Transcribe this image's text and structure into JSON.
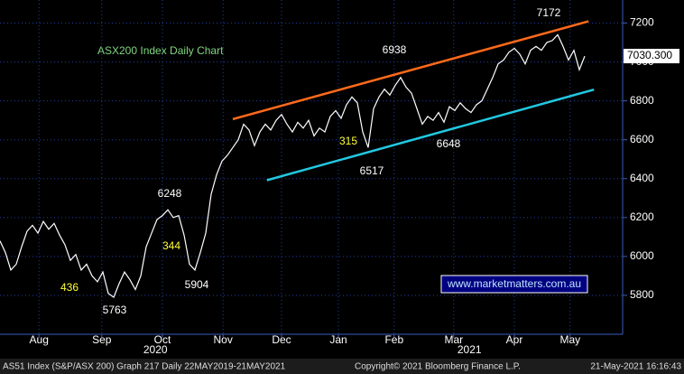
{
  "chart_data": {
    "type": "line",
    "title": "ASX200 Index Daily Chart",
    "series": [
      {
        "name": "AS51 Index",
        "color": "#ffffff",
        "values": [
          6080,
          6020,
          5930,
          5960,
          6050,
          6130,
          6160,
          6120,
          6180,
          6140,
          6170,
          6110,
          6060,
          5980,
          6010,
          5930,
          5960,
          5900,
          5870,
          5920,
          5810,
          5790,
          5860,
          5920,
          5880,
          5830,
          5900,
          6050,
          6120,
          6190,
          6210,
          6240,
          6200,
          6210,
          6110,
          5960,
          5930,
          6020,
          6120,
          6320,
          6420,
          6490,
          6520,
          6560,
          6600,
          6680,
          6650,
          6570,
          6640,
          6680,
          6650,
          6700,
          6730,
          6680,
          6640,
          6690,
          6660,
          6700,
          6620,
          6660,
          6640,
          6720,
          6750,
          6710,
          6780,
          6820,
          6790,
          6640,
          6560,
          6760,
          6820,
          6860,
          6830,
          6880,
          6920,
          6870,
          6840,
          6760,
          6680,
          6720,
          6700,
          6740,
          6690,
          6770,
          6750,
          6790,
          6760,
          6740,
          6780,
          6800,
          6860,
          6920,
          6990,
          7010,
          7050,
          7070,
          7040,
          6990,
          7060,
          7080,
          7060,
          7100,
          7110,
          7140,
          7080,
          7010,
          7060,
          6960,
          7030
        ]
      }
    ],
    "xlim": [
      0,
      115
    ],
    "ylim": [
      5600,
      7300
    ],
    "yticks": [
      5800,
      6000,
      6200,
      6400,
      6600,
      6800,
      7000,
      7200
    ],
    "xticks": [
      {
        "value": 7.2,
        "label": "Aug"
      },
      {
        "value": 18.8,
        "label": "Sep"
      },
      {
        "value": 30,
        "label": "Oct"
      },
      {
        "value": 41.2,
        "label": "Nov"
      },
      {
        "value": 52,
        "label": "Dec"
      },
      {
        "value": 62.5,
        "label": "Jan"
      },
      {
        "value": 72.8,
        "label": "Feb"
      },
      {
        "value": 83.8,
        "label": "Mar"
      },
      {
        "value": 95,
        "label": "Apr"
      },
      {
        "value": 105.3,
        "label": "May"
      }
    ],
    "year_ticks": [
      {
        "value": 28.7,
        "label": "2020"
      },
      {
        "value": 86.7,
        "label": "2021"
      }
    ],
    "grid": true,
    "trendlines": [
      {
        "color": "#ff6a1a",
        "x": [
          43,
          108.7
        ],
        "values": [
          6706,
          7209
        ]
      },
      {
        "color": "#22c8e0",
        "x": [
          49.3,
          109.7
        ],
        "values": [
          6392,
          6858
        ]
      }
    ],
    "last_price": {
      "value": 7030.3,
      "label": "7030.300"
    },
    "annotations": [
      {
        "text": "7172",
        "color": "#ffffff"
      },
      {
        "text": "6938",
        "color": "#ffffff"
      },
      {
        "text": "6517",
        "color": "#ffffff"
      },
      {
        "text": "6648",
        "color": "#ffffff"
      },
      {
        "text": "6248",
        "color": "#ffffff"
      },
      {
        "text": "5904",
        "color": "#ffffff"
      },
      {
        "text": "5763",
        "color": "#ffffff"
      },
      {
        "text": "436",
        "color": "#ffff33"
      },
      {
        "text": "344",
        "color": "#ffff33"
      },
      {
        "text": "315",
        "color": "#ffff33"
      }
    ],
    "watermark": "www.marketmatters.com.au",
    "footer": {
      "left": "AS51 Index (S&P/ASX 200) Graph 217  Daily 22MAY2019-21MAY2021",
      "center": "Copyright© 2021 Bloomberg Finance L.P.",
      "right": "21-May-2021 16:16:43"
    }
  }
}
